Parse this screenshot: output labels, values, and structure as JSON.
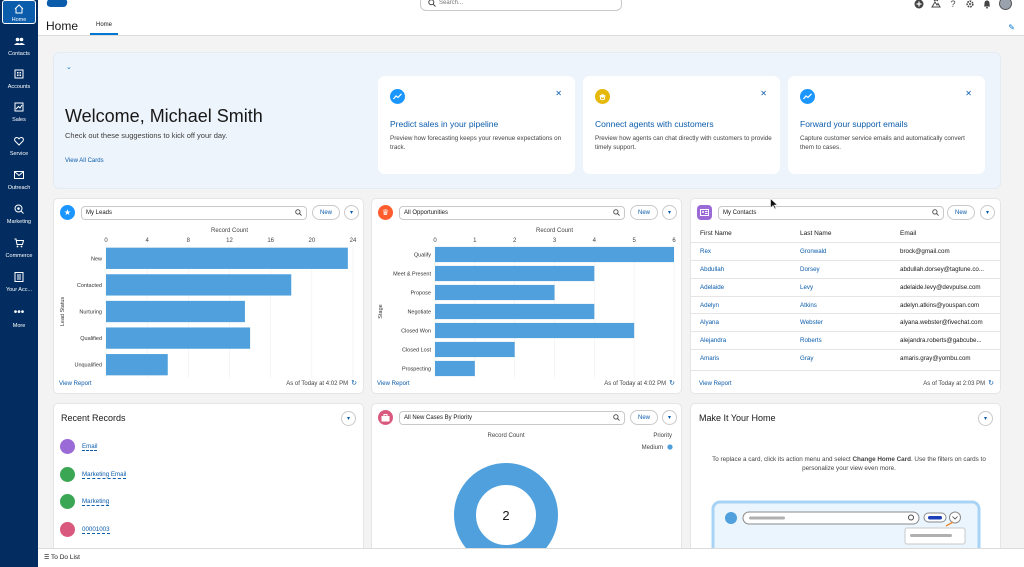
{
  "nav": {
    "items": [
      {
        "label": "Home",
        "icon": "home-icon"
      },
      {
        "label": "Contacts",
        "icon": "contacts-icon"
      },
      {
        "label": "Accounts",
        "icon": "accounts-icon"
      },
      {
        "label": "Sales",
        "icon": "sales-icon"
      },
      {
        "label": "Service",
        "icon": "service-icon"
      },
      {
        "label": "Outreach",
        "icon": "outreach-icon"
      },
      {
        "label": "Marketing",
        "icon": "marketing-icon"
      },
      {
        "label": "Commerce",
        "icon": "commerce-icon"
      },
      {
        "label": "Your Acc...",
        "icon": "your-account-icon"
      },
      {
        "label": "More",
        "icon": "more-icon"
      }
    ]
  },
  "header": {
    "app_title": "Home",
    "tab": "Home",
    "search_placeholder": "Search..."
  },
  "welcome": {
    "title": "Welcome, Michael Smith",
    "subtitle": "Check out these suggestions to kick off your day.",
    "view_all": "View All Cards",
    "suggestions": [
      {
        "title": "Predict sales in your pipeline",
        "desc": "Preview how forecasting keeps your revenue expectations on track.",
        "color": "#1b96ff"
      },
      {
        "title": "Connect agents with customers",
        "desc": "Preview how agents can chat directly with customers to provide timely support.",
        "color": "#e5b80b"
      },
      {
        "title": "Forward your support emails",
        "desc": "Capture customer service emails and automatically convert them to cases.",
        "color": "#1b96ff"
      }
    ]
  },
  "leads_card": {
    "picker": "My Leads",
    "new_label": "New",
    "view_report": "View Report",
    "as_of": "As of Today at 4:02 PM",
    "chart_data": {
      "type": "bar",
      "orientation": "horizontal",
      "title": "Record Count",
      "ylabel": "Lead Status",
      "categories": [
        "New",
        "Contacted",
        "Nurturing",
        "Qualified",
        "Unqualified"
      ],
      "values": [
        23.5,
        18,
        13.5,
        14,
        6
      ],
      "xlim": [
        0,
        24
      ],
      "ticks": [
        0,
        4,
        8,
        12,
        16,
        20,
        24
      ],
      "color": "#4fa0dc"
    }
  },
  "opps_card": {
    "picker": "All Opportunities",
    "new_label": "New",
    "view_report": "View Report",
    "as_of": "As of Today at 4:02 PM",
    "chart_data": {
      "type": "bar",
      "orientation": "horizontal",
      "title": "Record Count",
      "ylabel": "Stage",
      "categories": [
        "Qualify",
        "Meet & Present",
        "Propose",
        "Negotiate",
        "Closed Won",
        "Closed Lost",
        "Prospecting"
      ],
      "values": [
        6,
        4,
        3,
        4,
        5,
        2,
        1
      ],
      "xlim": [
        0,
        6
      ],
      "ticks": [
        0,
        1,
        2,
        3,
        4,
        5,
        6
      ],
      "color": "#4fa0dc"
    }
  },
  "contacts_card": {
    "picker": "My Contacts",
    "new_label": "New",
    "view_report": "View Report",
    "as_of": "As of Today at 2:03 PM",
    "columns": [
      "First Name",
      "Last Name",
      "Email"
    ],
    "rows": [
      [
        "Rex",
        "Gronwald",
        "brock@gmail.com"
      ],
      [
        "Abdullah",
        "Dorsey",
        "abdullah.dorsey@tagtune.co..."
      ],
      [
        "Adelaide",
        "Levy",
        "adelaide.levy@devpulse.com"
      ],
      [
        "Adelyn",
        "Atkins",
        "adelyn.atkins@youspan.com"
      ],
      [
        "Alyana",
        "Webster",
        "alyana.webster@fivechat.com"
      ],
      [
        "Alejandra",
        "Roberts",
        "alejandra.roberts@gabcube..."
      ],
      [
        "Amaris",
        "Gray",
        "amaris.gray@yombu.com"
      ]
    ]
  },
  "recent_records": {
    "title": "Recent Records",
    "items": [
      {
        "label": "Email",
        "color": "#9a6ad6"
      },
      {
        "label": "Marketing Email",
        "color": "#3ba755"
      },
      {
        "label": "Marketing",
        "color": "#3ba755"
      },
      {
        "label": "00001003",
        "color": "#d9587d"
      }
    ]
  },
  "cases_card": {
    "picker": "All New Cases By Priority",
    "new_label": "New",
    "chart_data": {
      "type": "pie",
      "title": "Record Count",
      "legend_title": "Priority",
      "legend_placement": "top-right",
      "slices": [
        {
          "label": "Medium",
          "value": 2,
          "color": "#4fa0dc"
        }
      ],
      "total": 2
    }
  },
  "make_home": {
    "title": "Make It Your Home",
    "text_before": "To replace a card, click its action menu and select ",
    "text_bold": "Change Home Card",
    "text_after": ". Use the filters on cards to personalize your view even more."
  },
  "utility": {
    "todo": "To Do List"
  }
}
